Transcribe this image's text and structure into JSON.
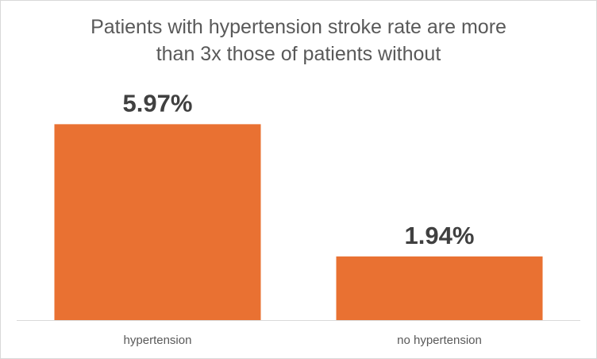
{
  "chart_data": {
    "type": "bar",
    "title_lines": [
      "Patients with hypertension stroke rate are more",
      "than 3x those of patients without"
    ],
    "categories": [
      "hypertension",
      "no hypertension"
    ],
    "values": [
      5.97,
      1.94
    ],
    "data_labels": [
      "5.97%",
      "1.94%"
    ],
    "ylim": [
      0,
      6.1
    ],
    "grid": false,
    "legend": "none",
    "bar_color": "#E97132",
    "axis_color": "#D9D9D9"
  }
}
